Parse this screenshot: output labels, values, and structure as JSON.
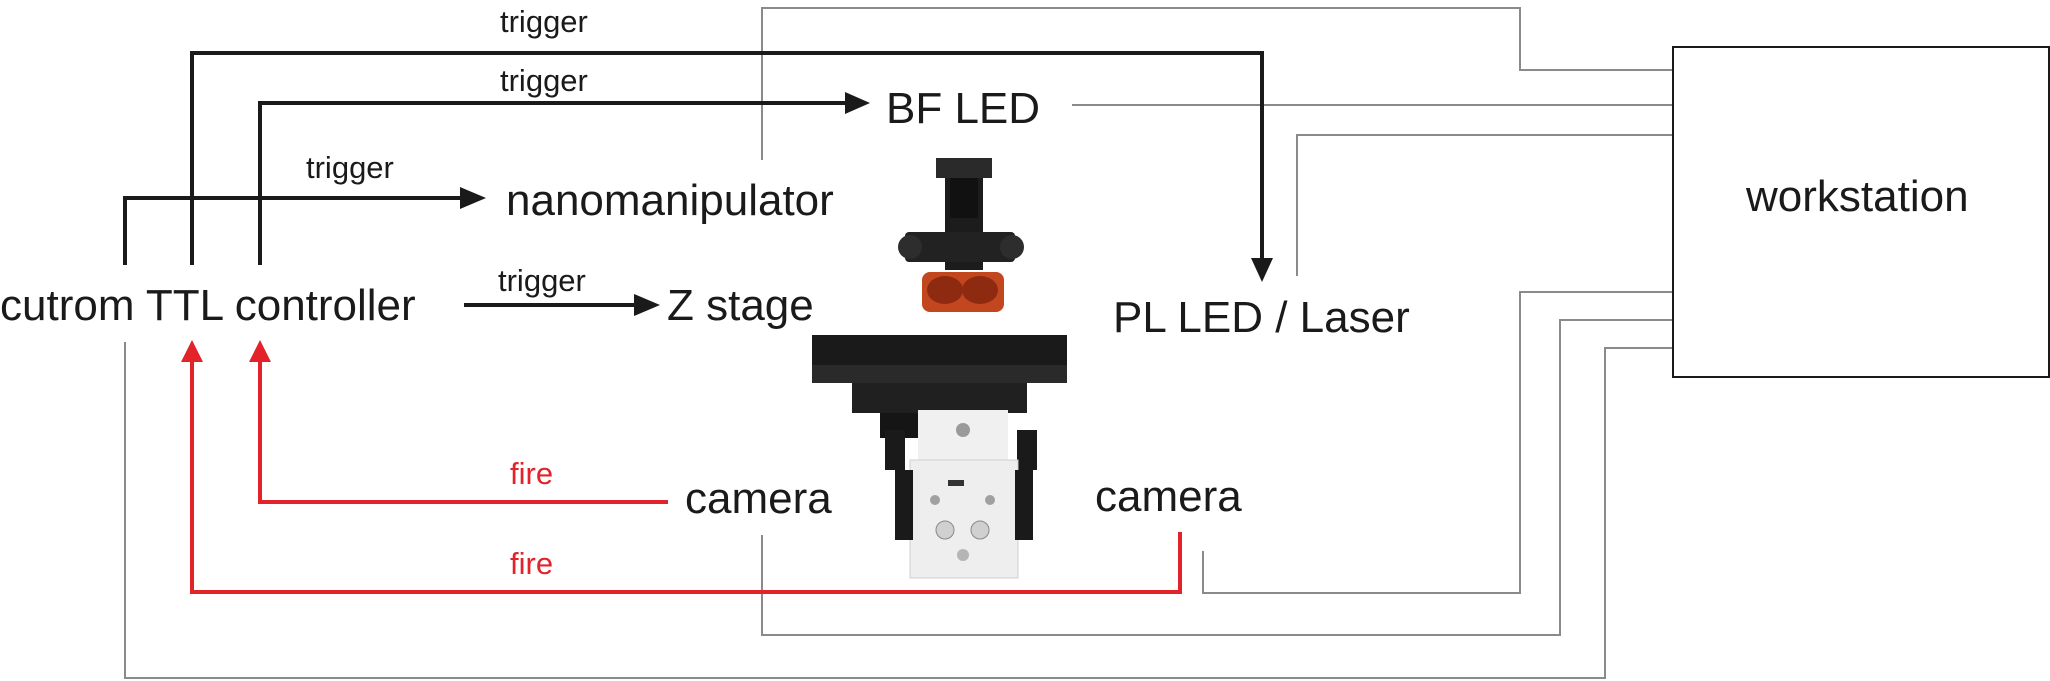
{
  "nodes": {
    "controller": "cutrom TTL controller",
    "bf_led": "BF LED",
    "nanomanipulator": "nanomanipulator",
    "z_stage": "Z stage",
    "pl_led_laser": "PL LED / Laser",
    "camera_left": "camera",
    "camera_right": "camera",
    "workstation": "workstation"
  },
  "edges": {
    "trigger_pl": "trigger",
    "trigger_bf": "trigger",
    "trigger_nano": "trigger",
    "trigger_z": "trigger",
    "fire_left": "fire",
    "fire_right": "fire"
  },
  "colors": {
    "trigger_line": "#1a1a1a",
    "fire_line": "#e2232a",
    "data_line": "#8a8a8a"
  },
  "icons": {
    "microscope": "inverted-microscope-icon"
  }
}
